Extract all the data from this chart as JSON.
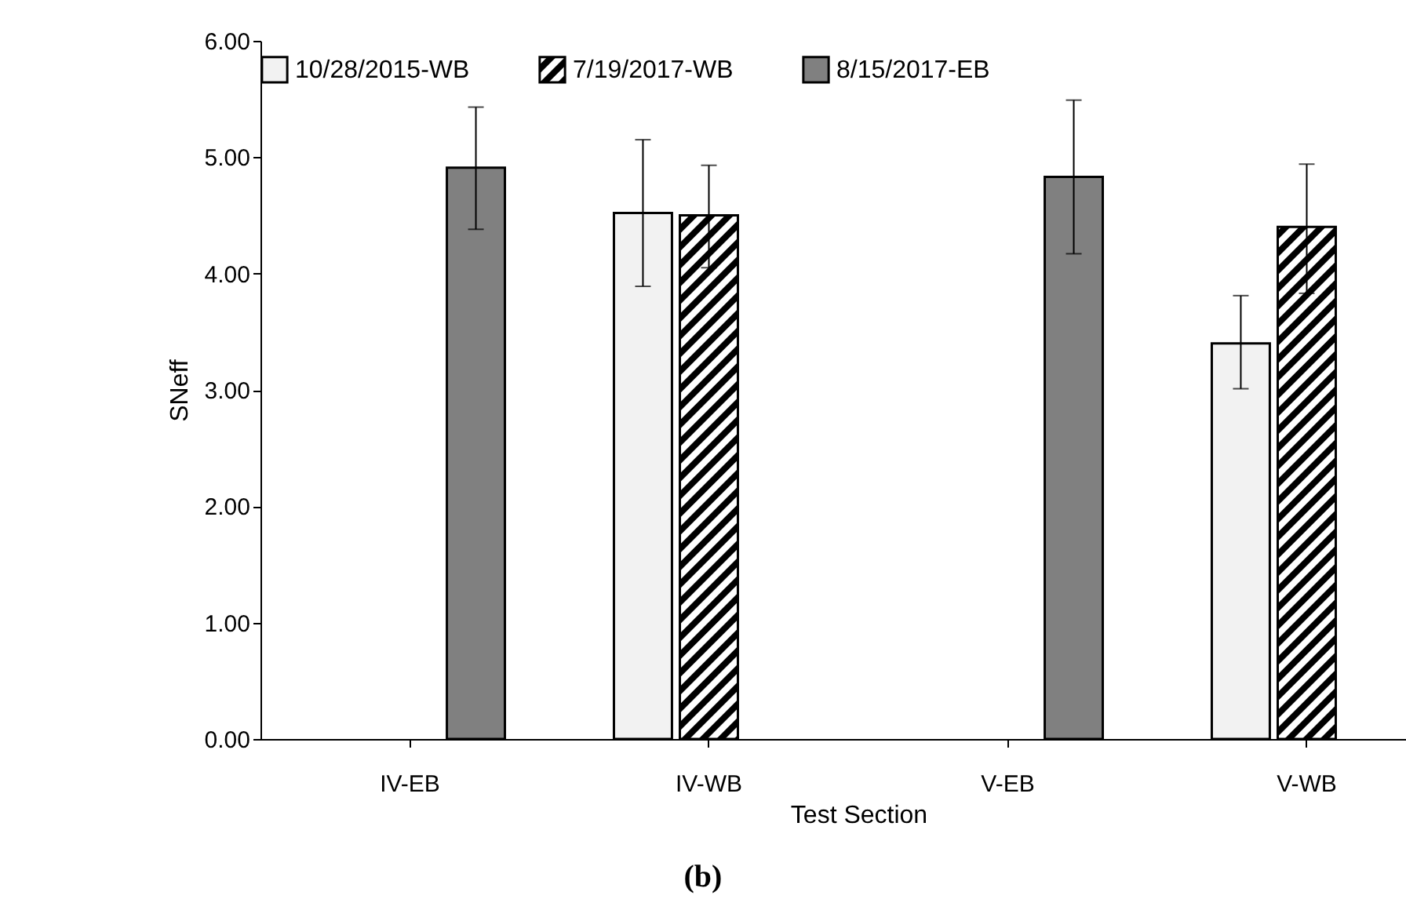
{
  "chart_data": {
    "type": "bar",
    "xlabel": "Test Section",
    "ylabel": "SNeff",
    "categories": [
      "IV-EB",
      "IV-WB",
      "V-EB",
      "V-WB"
    ],
    "series": [
      {
        "name": "10/28/2015-WB",
        "color": "#f2f2f2",
        "values": [
          null,
          4.52,
          null,
          3.4
        ],
        "errors": [
          null,
          [
            3.89,
            5.15
          ],
          null,
          [
            3.01,
            3.81
          ]
        ]
      },
      {
        "name": "7/19/2017-WB",
        "color": "#000000",
        "values": [
          null,
          4.5,
          null,
          4.4
        ],
        "errors": [
          null,
          [
            4.05,
            4.93
          ],
          null,
          [
            3.83,
            4.94
          ]
        ]
      },
      {
        "name": "8/15/2017-EB",
        "color": "#808080",
        "values": [
          4.91,
          null,
          4.83,
          null
        ],
        "errors": [
          [
            4.38,
            5.43
          ],
          null,
          [
            4.17,
            5.49
          ],
          null
        ]
      }
    ],
    "ylim": [
      0,
      6
    ],
    "yticks": [
      {
        "value": 0,
        "label": "0.00"
      },
      {
        "value": 1,
        "label": "1.00"
      },
      {
        "value": 2,
        "label": "2.00"
      },
      {
        "value": 3,
        "label": "3.00"
      },
      {
        "value": 4,
        "label": "4.00"
      },
      {
        "value": 5,
        "label": "5.00"
      },
      {
        "value": 6,
        "label": "6.00"
      }
    ],
    "grid": false,
    "legend": "top",
    "annotations": [
      "(b)"
    ]
  }
}
